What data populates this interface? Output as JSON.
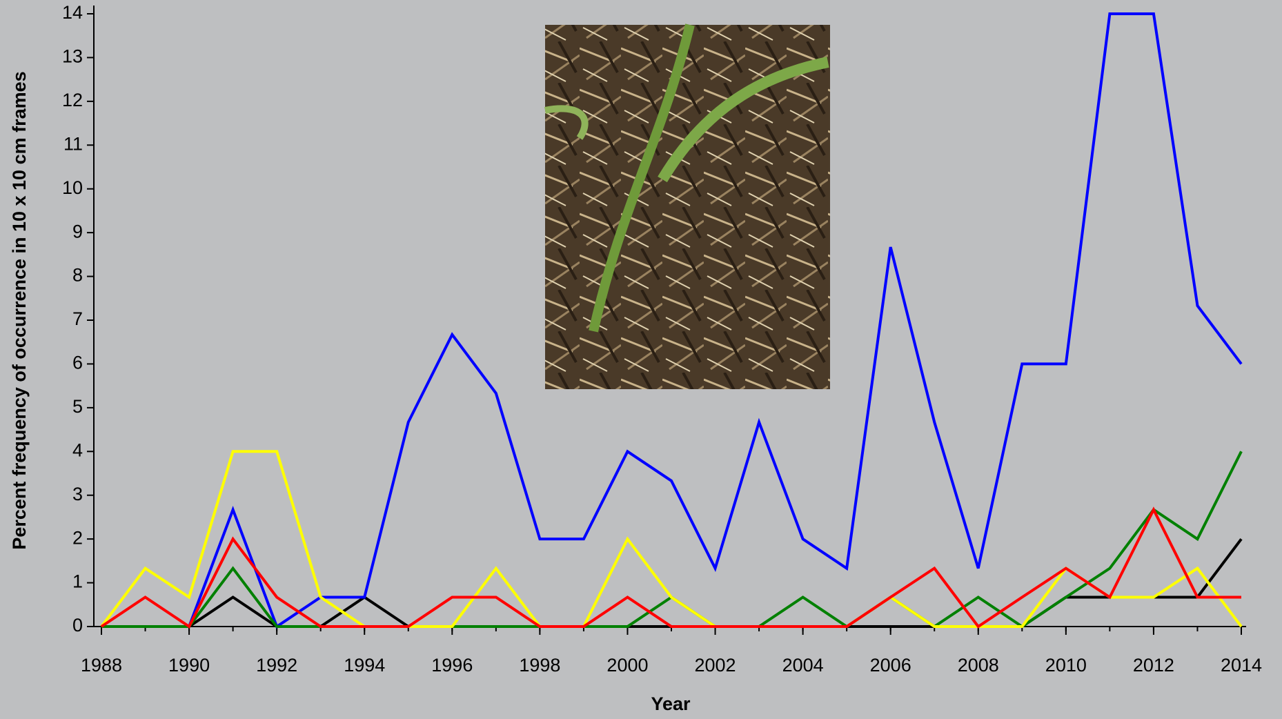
{
  "chart_data": {
    "type": "line",
    "x_label": "Year",
    "y_label": "Percent frequency of occurrence in 10 x 10 cm frames",
    "x": [
      1988,
      1989,
      1990,
      1991,
      1992,
      1993,
      1994,
      1995,
      1996,
      1997,
      1998,
      1999,
      2000,
      2001,
      2002,
      2003,
      2004,
      2005,
      2006,
      2007,
      2008,
      2009,
      2010,
      2011,
      2012,
      2013,
      2014
    ],
    "xlim": [
      1988,
      2014
    ],
    "xticks": [
      1988,
      1990,
      1992,
      1994,
      1996,
      1998,
      2000,
      2002,
      2004,
      2006,
      2008,
      2010,
      2012,
      2014
    ],
    "ylim": [
      0,
      14
    ],
    "yticks": [
      0,
      1,
      2,
      3,
      4,
      5,
      6,
      7,
      8,
      9,
      10,
      11,
      12,
      13,
      14
    ],
    "grid": false,
    "series": [
      {
        "color": "#000000",
        "values": [
          0,
          0,
          0,
          0.67,
          0,
          0,
          0.67,
          0,
          0,
          0,
          0,
          0,
          0,
          0,
          0,
          0,
          0,
          0,
          0,
          0,
          0,
          0,
          0.67,
          0.67,
          0.67,
          0.67,
          2
        ]
      },
      {
        "color": "#0000ff",
        "values": [
          0,
          0,
          0,
          2.67,
          0,
          0.67,
          0.67,
          4.67,
          6.67,
          5.33,
          2,
          2,
          4,
          3.33,
          1.33,
          4.67,
          2,
          1.33,
          8.67,
          4.67,
          1.33,
          6,
          6,
          14,
          14,
          7.33,
          6
        ]
      },
      {
        "color": "#008000",
        "values": [
          0,
          0,
          0,
          1.33,
          0,
          0,
          0,
          0,
          0,
          0,
          0,
          0,
          0,
          0.67,
          0,
          0,
          0.67,
          0,
          0.67,
          0,
          0.67,
          0,
          0.67,
          1.33,
          2.67,
          2,
          4
        ]
      },
      {
        "color": "#ffff00",
        "values": [
          0,
          1.33,
          0.67,
          4,
          4,
          0.67,
          0,
          0,
          0,
          1.33,
          0,
          0,
          2,
          0.67,
          0,
          0,
          0,
          0,
          0.67,
          0,
          0,
          0,
          1.33,
          0.67,
          0.67,
          1.33,
          0
        ]
      },
      {
        "color": "#ff0000",
        "values": [
          0,
          0.67,
          0,
          2,
          0.67,
          0,
          0,
          0,
          0.67,
          0.67,
          0,
          0,
          0.67,
          0,
          0,
          0,
          0,
          0,
          0.67,
          1.33,
          0,
          0.67,
          1.33,
          0.67,
          2.67,
          0.67,
          0.67
        ]
      }
    ]
  }
}
